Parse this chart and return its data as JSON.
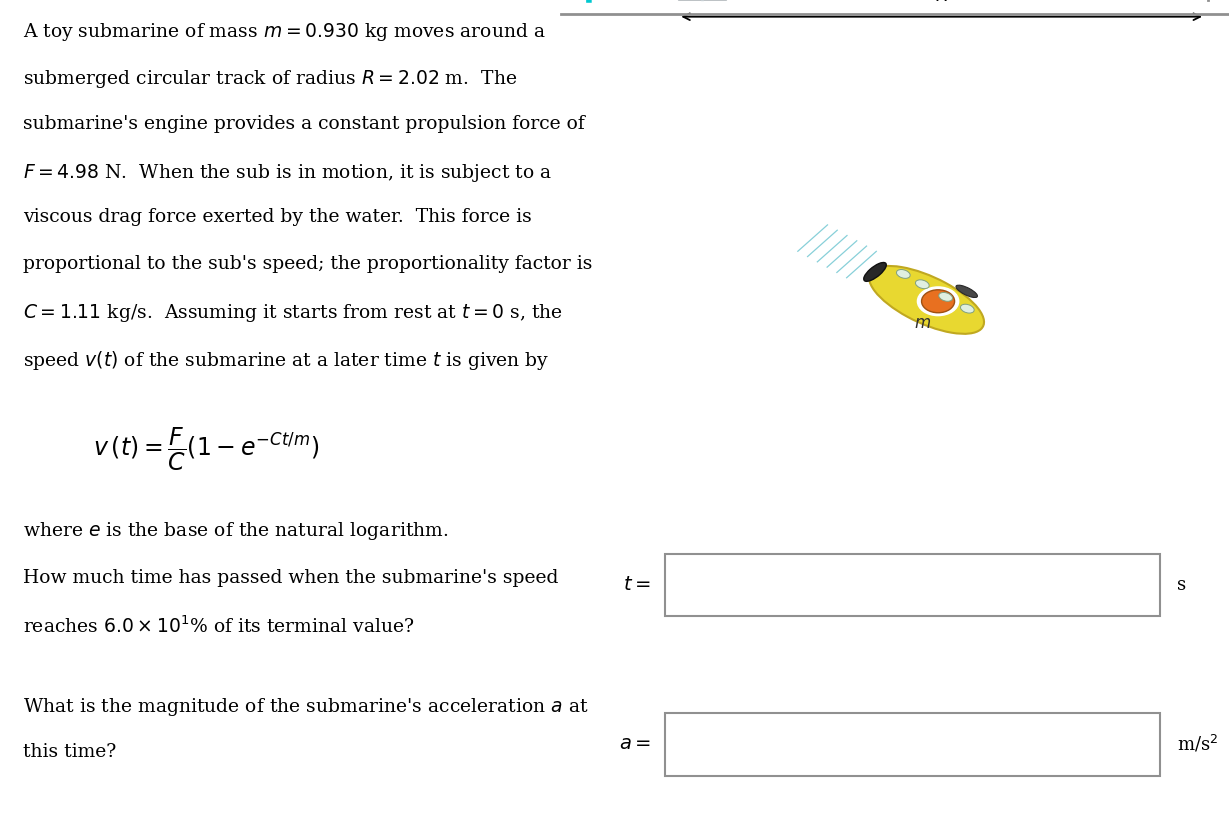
{
  "bg_color": "#ffffff",
  "text_color": "#000000",
  "problem_text_lines": [
    "A toy submarine of mass $m = 0.930$ kg moves around a",
    "submerged circular track of radius $R = 2.02$ m.  The",
    "submarine's engine provides a constant propulsion force of",
    "$F = 4.98$ N.  When the sub is in motion, it is subject to a",
    "viscous drag force exerted by the water.  This force is",
    "proportional to the sub's speed; the proportionality factor is",
    "$C = 1.11$ kg/s.  Assuming it starts from rest at $t = 0$ s, the",
    "speed $v(t)$ of the submarine at a later time $t$ is given by"
  ],
  "formula": "$v\\,(t) = \\dfrac{F}{C}\\left(1 - e^{-Ct/m}\\right)$",
  "where_text": "where $e$ is the base of the natural logarithm.",
  "question1_line1": "How much time has passed when the submarine's speed",
  "question1_line2": "reaches $6.0 \\times 10^1$% of its terminal value?",
  "question2_line1": "What is the magnitude of the submarine's acceleration $a$ at",
  "question2_line2": "this time?",
  "t_label": "$t =$",
  "t_unit": "s",
  "a_label": "$a =$",
  "a_unit": "m/s$^2$",
  "water_light": "#cef0f4",
  "water_lighter": "#dff8fa",
  "water_dark_strip": "#b0e8f0",
  "track_color": "#a8b4bc",
  "track_edge": "#8a9298",
  "sub_yellow": "#e8d830",
  "sub_yellow_edge": "#c0a820",
  "sub_porthole": "#e0efe0",
  "sub_orange": "#e87020",
  "sub_dark": "#282828",
  "cyan_arc": "#00c8d0",
  "box_edge": "#909090",
  "black": "#000000"
}
